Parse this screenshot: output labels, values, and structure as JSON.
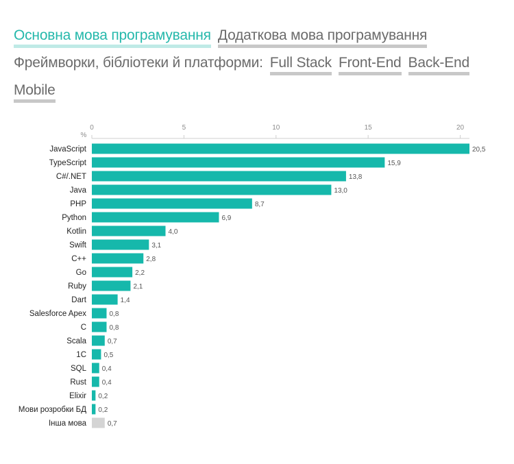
{
  "nav": {
    "row1": [
      {
        "label": "Основна мова програмування",
        "active": true
      },
      {
        "label": "Додаткова мова програмування",
        "active": false
      }
    ],
    "frameworks_label": "Фреймворки, бібліотеки й платформи:",
    "row2": [
      {
        "label": "Full Stack",
        "active": false
      },
      {
        "label": "Front-End",
        "active": false
      },
      {
        "label": "Back-End",
        "active": false
      }
    ],
    "row3": [
      {
        "label": "Mobile",
        "active": false
      }
    ]
  },
  "colors": {
    "bar": "#16b8ab",
    "other_bar": "#d4d4d4",
    "accent_text": "#25b8ab",
    "axis_text": "#8c8c8c"
  },
  "chart_data": {
    "type": "bar",
    "orientation": "horizontal",
    "axis_unit_label": "%",
    "xlim": [
      0,
      20.5
    ],
    "ticks": [
      {
        "value": 0,
        "label": "0"
      },
      {
        "value": 5,
        "label": "5"
      },
      {
        "value": 10,
        "label": "10"
      },
      {
        "value": 15,
        "label": "15"
      },
      {
        "value": 20,
        "label": "20"
      }
    ],
    "axis_position": "top",
    "grid": false,
    "categories": [
      "JavaScript",
      "TypeScript",
      "C#/.NET",
      "Java",
      "PHP",
      "Python",
      "Kotlin",
      "Swift",
      "C++",
      "Go",
      "Ruby",
      "Dart",
      "Salesforce Apex",
      "C",
      "Scala",
      "1C",
      "SQL",
      "Rust",
      "Elixir",
      "Мови розробки БД",
      "Інша мова"
    ],
    "values": [
      20.5,
      15.9,
      13.8,
      13.0,
      8.7,
      6.9,
      4.0,
      3.1,
      2.8,
      2.2,
      2.1,
      1.4,
      0.8,
      0.8,
      0.7,
      0.5,
      0.4,
      0.4,
      0.2,
      0.2,
      0.7
    ],
    "value_labels": [
      "20,5",
      "15,9",
      "13,8",
      "13,0",
      "8,7",
      "6,9",
      "4,0",
      "3,1",
      "2,8",
      "2,2",
      "2,1",
      "1,4",
      "0,8",
      "0,8",
      "0,7",
      "0,5",
      "0,4",
      "0,4",
      "0,2",
      "0,2",
      "0,7"
    ],
    "other_category": "Інша мова"
  }
}
